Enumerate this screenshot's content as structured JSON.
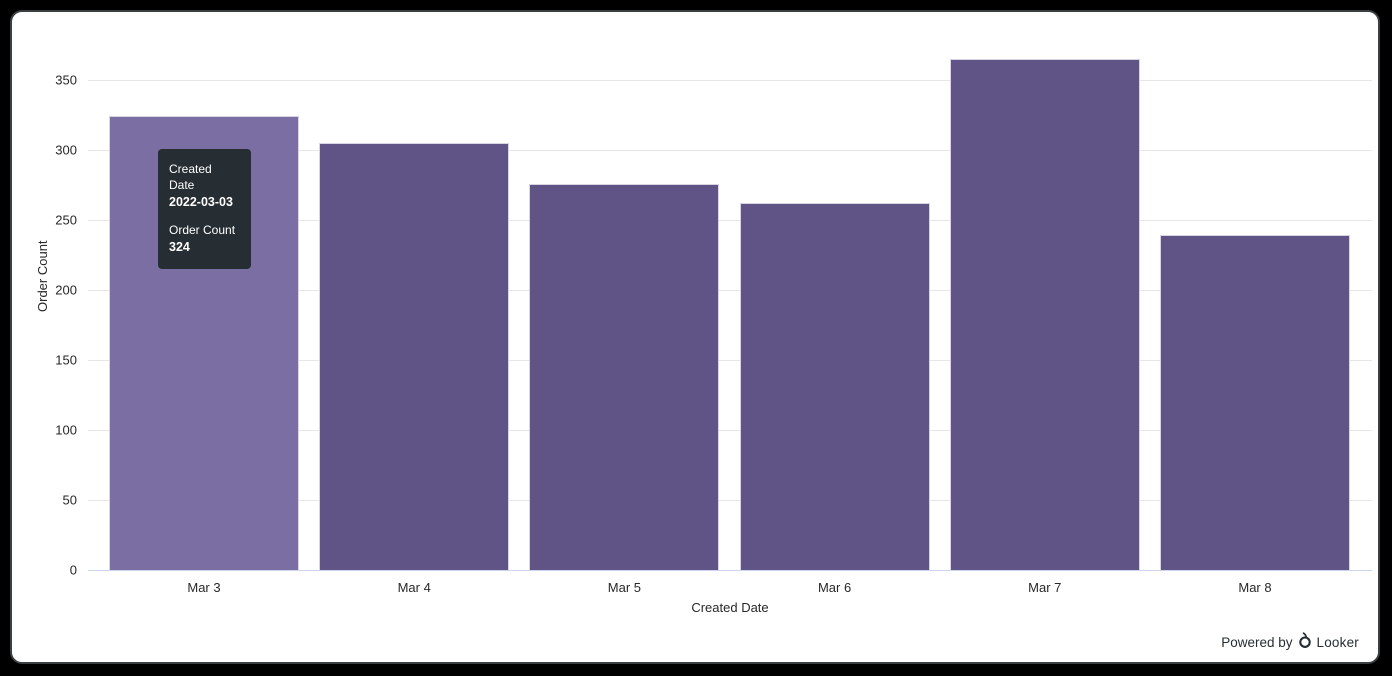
{
  "frame": {
    "background": "#000000",
    "card_background": "#ffffff"
  },
  "chart_data": {
    "type": "bar",
    "categories": [
      "Mar 3",
      "Mar 4",
      "Mar 5",
      "Mar 6",
      "Mar 7",
      "Mar 8"
    ],
    "values": [
      324,
      305,
      276,
      262,
      365,
      239
    ],
    "title": "",
    "xlabel": "Created Date",
    "ylabel": "Order Count",
    "ylim": [
      0,
      350
    ],
    "yticks": [
      0,
      50,
      100,
      150,
      200,
      250,
      300,
      350
    ],
    "grid": true,
    "legend": "none",
    "hovered_index": 0,
    "colors": {
      "bar": "#605487",
      "bar_hover": "#7b6ea2",
      "bar_border": "#d8d4e2",
      "gridline": "#e6e6e6",
      "axis_line": "#ccd6eb",
      "label": "#282828"
    }
  },
  "tooltip": {
    "dimension_label": "Created Date",
    "dimension_value": "2022-03-03",
    "measure_label": "Order Count",
    "measure_value": "324",
    "background": "#262d33",
    "text_color": "#ffffff"
  },
  "footer": {
    "powered_by": "Powered by",
    "brand": "Looker"
  }
}
